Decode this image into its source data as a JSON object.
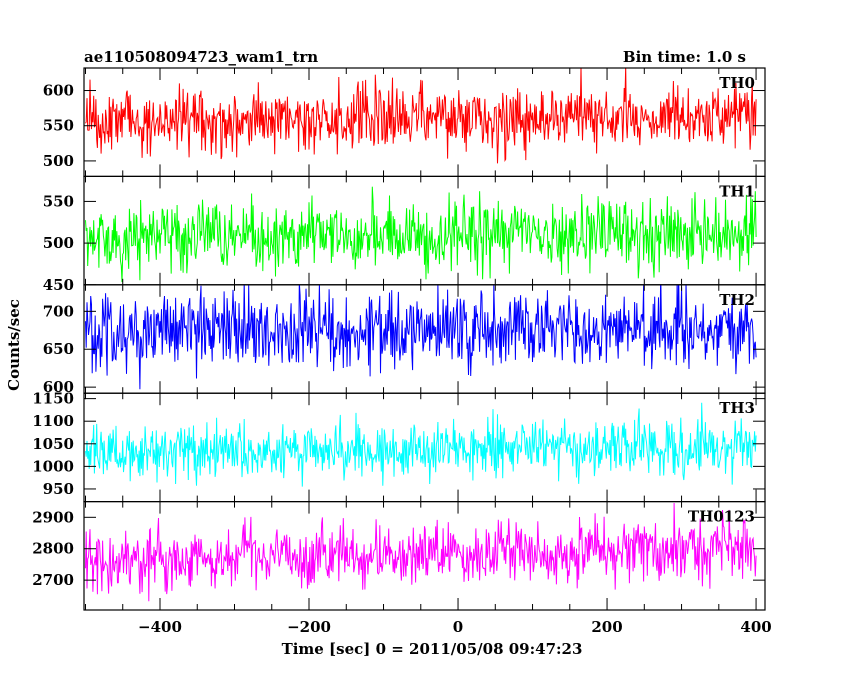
{
  "header": {
    "title": "ae110508094723_wam1_trn",
    "bin_time": "Bin time: 1.0 s"
  },
  "axes": {
    "xlabel": "Time [sec] 0 = 2011/05/08 09:47:23",
    "ylabel": "Counts/sec"
  },
  "chart_data": {
    "type": "line",
    "title": "ae110508094723_wam1_trn",
    "subtitle": "Bin time: 1.0 s",
    "xlabel": "Time [sec] 0 = 2011/05/08 09:47:23",
    "ylabel": "Counts/sec",
    "xlim": [
      -502,
      412
    ],
    "x_start": -500,
    "x_end": 400,
    "x_step": 1,
    "x_ticks": [
      -400,
      -200,
      0,
      200,
      400
    ],
    "x_tick_labels": [
      "−400",
      "−200",
      "0",
      "200",
      "400"
    ],
    "panels": [
      {
        "label": "TH0",
        "color": "#ff0000",
        "ylim": [
          478,
          632
        ],
        "y_ticks": [
          500,
          550,
          600
        ],
        "y_tick_labels": [
          "500",
          "550",
          "600"
        ],
        "series": {
          "name": "TH0",
          "mean": 555,
          "amplitude": 35,
          "trend_end": 10
        }
      },
      {
        "label": "TH1",
        "color": "#00ff00",
        "ylim": [
          450,
          580
        ],
        "y_ticks": [
          450,
          500,
          550
        ],
        "y_tick_labels": [
          "450",
          "500",
          "550"
        ],
        "series": {
          "name": "TH1",
          "mean": 505,
          "amplitude": 30,
          "trend_end": 8
        }
      },
      {
        "label": "TH2",
        "color": "#0000ff",
        "ylim": [
          592,
          735
        ],
        "y_ticks": [
          600,
          650,
          700
        ],
        "y_tick_labels": [
          "600",
          "650",
          "700"
        ],
        "series": {
          "name": "TH2",
          "mean": 672,
          "amplitude": 38,
          "trend_end": 6
        }
      },
      {
        "label": "TH3",
        "color": "#00ffff",
        "ylim": [
          922,
          1162
        ],
        "y_ticks": [
          950,
          1000,
          1050,
          1100,
          1150
        ],
        "y_tick_labels": [
          "950",
          "1000",
          "1050",
          "1100",
          "1150"
        ],
        "series": {
          "name": "TH3",
          "mean": 1032,
          "amplitude": 48,
          "trend_end": 15
        }
      },
      {
        "label": "TH0123",
        "color": "#ff00ff",
        "ylim": [
          2605,
          2950
        ],
        "y_ticks": [
          2700,
          2800,
          2900
        ],
        "y_tick_labels": [
          "2700",
          "2800",
          "2900"
        ],
        "series": {
          "name": "TH0123",
          "mean": 2762,
          "amplitude": 75,
          "trend_end": 45
        }
      }
    ]
  }
}
